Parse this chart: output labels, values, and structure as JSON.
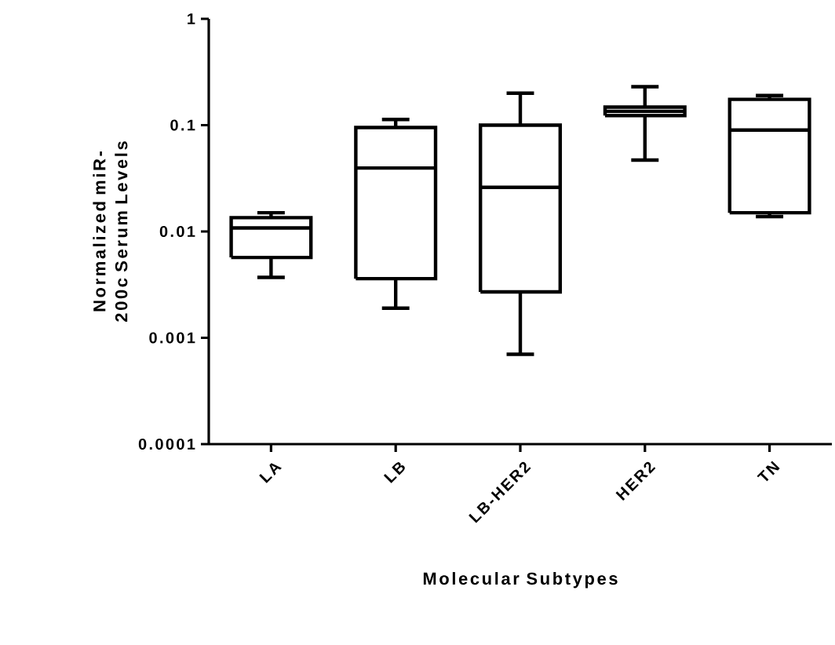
{
  "chart_data": {
    "type": "box",
    "xlabel": "Molecular Subtypes",
    "ylabel": "Normalized miR-200c Serum Levels",
    "log": true,
    "color": "#000000",
    "categories": [
      "LA",
      "LB",
      "LB-HER2",
      "HER2",
      "TN"
    ],
    "boxes": [
      {
        "low": 0.0037,
        "q1": 0.0057,
        "median": 0.0108,
        "q3": 0.0135,
        "high": 0.015
      },
      {
        "low": 0.0019,
        "q1": 0.0036,
        "median": 0.0395,
        "q3": 0.095,
        "high": 0.113
      },
      {
        "low": 0.0007,
        "q1": 0.0027,
        "median": 0.026,
        "q3": 0.1,
        "high": 0.2
      },
      {
        "low": 0.047,
        "q1": 0.123,
        "median": 0.135,
        "q3": 0.148,
        "high": 0.23
      },
      {
        "low": 0.0138,
        "q1": 0.015,
        "median": 0.09,
        "q3": 0.175,
        "high": 0.19
      }
    ],
    "ylim": [
      0.0001,
      1
    ],
    "yticks": [
      0.0001,
      0.001,
      0.01,
      0.1,
      1
    ]
  }
}
